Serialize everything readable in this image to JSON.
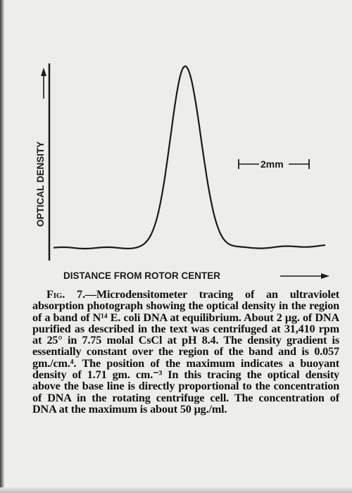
{
  "chart_data": {
    "type": "line",
    "ylabel": "OPTICAL DENSITY",
    "xlabel": "DISTANCE FROM ROTOR CENTER",
    "scale_bar_label": "2mm",
    "peak": {
      "center_mm": 0.0,
      "sigma_mm": 0.67,
      "baseline": 0.0,
      "height": 1.0
    },
    "xlim": [
      -6.0,
      6.4
    ],
    "ylim": [
      0,
      1.0
    ],
    "grid": false,
    "legend": "none"
  },
  "caption": {
    "fig_label": "Fig. 7.",
    "text": "—Microdensitometer tracing of an ultraviolet absorption photograph showing the optical density in the region of a band of N¹⁴ E. coli DNA at equilibrium. About 2 μg. of DNA purified as described in the text was centrifuged at 31,410 rpm at 25° in 7.75 molal CsCl at pH 8.4. The density gradient is essentially constant over the region of the band and is 0.057 gm./cm.⁴. The position of the maximum indicates a buoyant density of 1.71 gm. cm.⁻³ In this tracing the optical density above the base line is directly proportional to the concentration of DNA in the rotating centrifuge cell. The concentration of DNA at the maximum is about 50 μg./ml."
  }
}
